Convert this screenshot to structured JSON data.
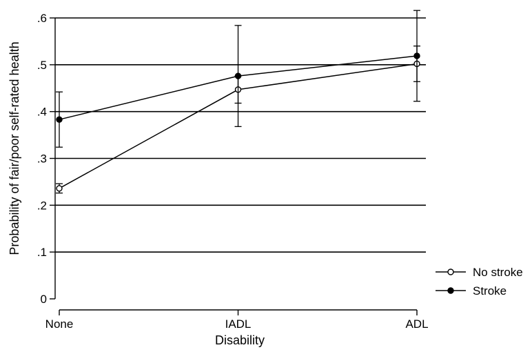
{
  "chart_data": {
    "type": "line",
    "title": "",
    "xlabel": "Disability",
    "ylabel": "Probability of fair/poor self-rated health",
    "categories": [
      "None",
      "IADL",
      "ADL"
    ],
    "ylim": [
      0,
      0.6
    ],
    "yticks": [
      0,
      0.1,
      0.2,
      0.3,
      0.4,
      0.5,
      0.6
    ],
    "ytick_labels": [
      "0",
      ".1",
      ".2",
      ".3",
      ".4",
      ".5",
      ".6"
    ],
    "grid": "horizontal",
    "legend_position": "right",
    "series": [
      {
        "name": "No stroke",
        "marker": "hollow-circle",
        "color": "#000000",
        "values": [
          0.236,
          0.447,
          0.502
        ],
        "ci_low": [
          0.226,
          0.418,
          0.464
        ],
        "ci_high": [
          0.246,
          0.476,
          0.54
        ]
      },
      {
        "name": "Stroke",
        "marker": "filled-circle",
        "color": "#000000",
        "values": [
          0.383,
          0.476,
          0.519
        ],
        "ci_low": [
          0.324,
          0.368,
          0.422
        ],
        "ci_high": [
          0.442,
          0.584,
          0.616
        ]
      }
    ]
  }
}
